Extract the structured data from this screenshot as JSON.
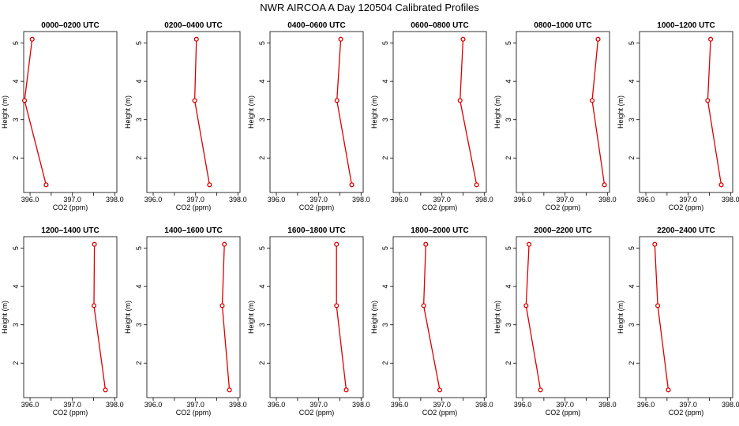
{
  "title": "NWR AIRCOA A  Day 120504  Calibrated Profiles",
  "colors": {
    "line": "#dd0000",
    "marker": "#dd0000",
    "axis": "#000000",
    "background": "#ffffff"
  },
  "chart_data": {
    "type": "line",
    "xlabel": "CO2 (ppm)",
    "ylabel": "Height (m)",
    "xlim": [
      395.85,
      398.05
    ],
    "ylim": [
      1.1,
      5.3
    ],
    "x_ticks": [
      396.0,
      396.5,
      397.0,
      397.5,
      398.0
    ],
    "x_tick_labels": [
      "396.0",
      "",
      "397.0",
      "",
      "398.0"
    ],
    "y_ticks": [
      2,
      3,
      4,
      5
    ],
    "y_tick_labels": [
      "2",
      "3",
      "4",
      "5"
    ],
    "heights": [
      5.1,
      3.5,
      1.3
    ],
    "panels": [
      {
        "title": "0000–0200 UTC",
        "co2": [
          396.05,
          395.87,
          396.38
        ]
      },
      {
        "title": "0200–0400 UTC",
        "co2": [
          397.02,
          396.98,
          397.33
        ]
      },
      {
        "title": "0400–0600 UTC",
        "co2": [
          397.52,
          397.43,
          397.78
        ]
      },
      {
        "title": "0600–0800 UTC",
        "co2": [
          397.5,
          397.43,
          397.82
        ]
      },
      {
        "title": "0800–1000 UTC",
        "co2": [
          397.78,
          397.64,
          397.93
        ]
      },
      {
        "title": "1000–1200 UTC",
        "co2": [
          397.53,
          397.46,
          397.78
        ]
      },
      {
        "title": "1200–1400 UTC",
        "co2": [
          397.52,
          397.51,
          397.78
        ]
      },
      {
        "title": "1400–1600 UTC",
        "co2": [
          397.68,
          397.63,
          397.8
        ]
      },
      {
        "title": "1600–1800 UTC",
        "co2": [
          397.42,
          397.42,
          397.65
        ]
      },
      {
        "title": "1800–2000 UTC",
        "co2": [
          396.62,
          396.57,
          396.95
        ]
      },
      {
        "title": "2000–2200 UTC",
        "co2": [
          396.15,
          396.08,
          396.42
        ]
      },
      {
        "title": "2200–2400 UTC",
        "co2": [
          396.21,
          396.28,
          396.53
        ]
      }
    ]
  }
}
